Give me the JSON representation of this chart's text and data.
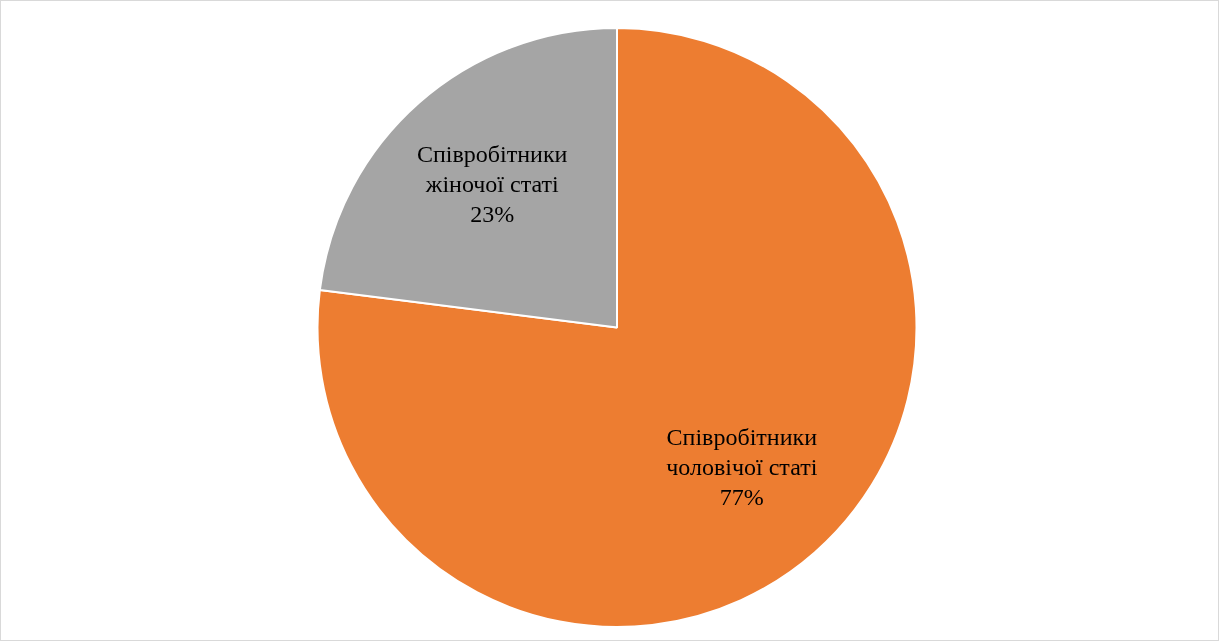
{
  "chart_data": {
    "type": "pie",
    "categories": [
      "Співробітники чоловічої статі",
      "Співробітники жіночої статі"
    ],
    "values": [
      77,
      23
    ],
    "colors": [
      "#ed7d31",
      "#a5a5a5"
    ],
    "value_labels": [
      "77%",
      "23%"
    ]
  }
}
